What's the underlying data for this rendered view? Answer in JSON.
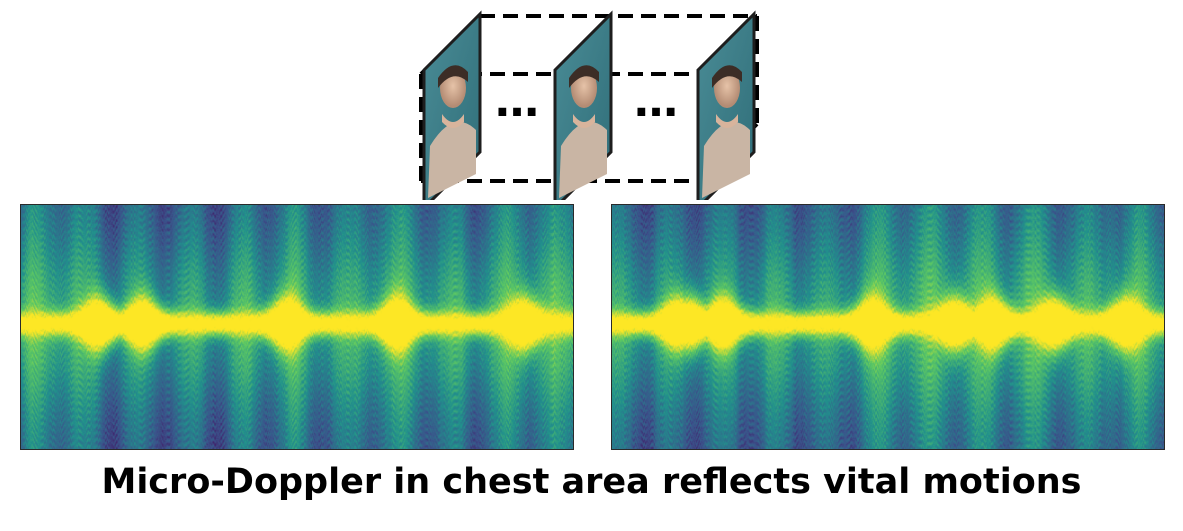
{
  "caption": "Micro-Doppler in chest area reflects vital motions",
  "frames": {
    "count": 3,
    "ellipsis": "…",
    "icon": "face-frame-icon"
  },
  "colormap": [
    "#440154",
    "#3b528b",
    "#21918c",
    "#5ec962",
    "#fde725"
  ],
  "spectrograms": [
    {
      "name": "spectrogram-left",
      "peaks": [
        0.14,
        0.22,
        0.48,
        0.68,
        0.91
      ]
    },
    {
      "name": "spectrogram-right",
      "peaks": [
        0.12,
        0.14,
        0.2,
        0.47,
        0.62,
        0.69,
        0.8,
        0.93
      ]
    }
  ]
}
